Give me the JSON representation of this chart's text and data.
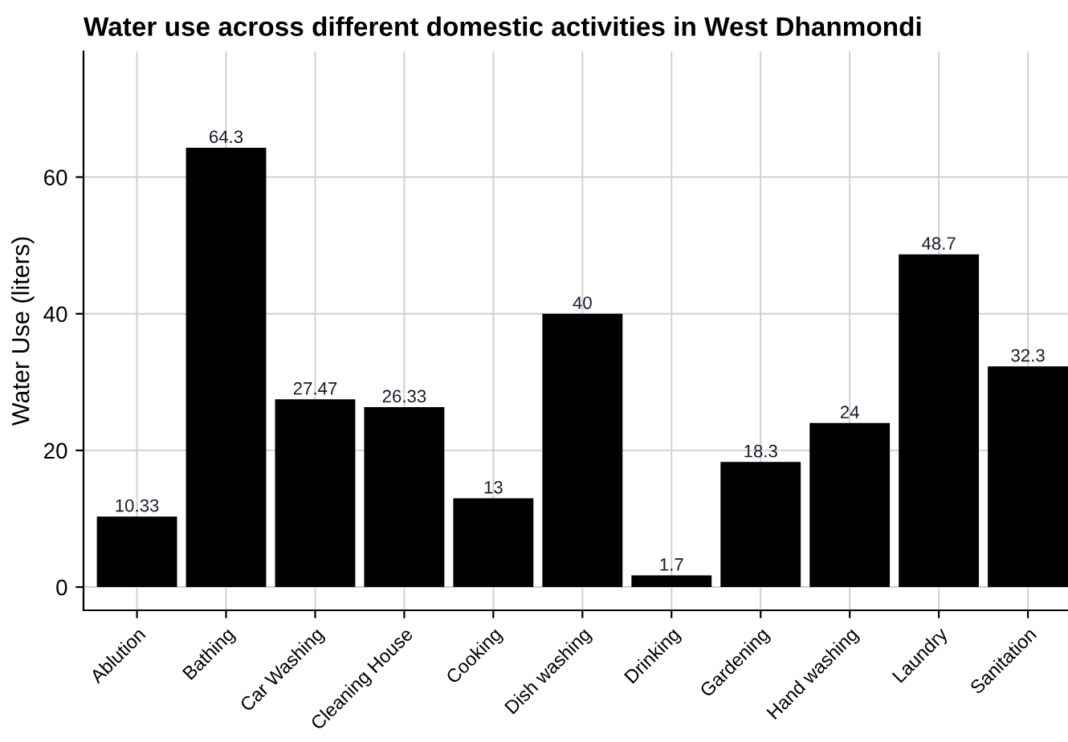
{
  "chart_data": {
    "type": "bar",
    "title": "Water use across different domestic activities in West Dhanmondi",
    "ylabel": "Water Use (liters)",
    "categories": [
      "Ablution",
      "Bathing",
      "Car Washing",
      "Cleaning House",
      "Cooking",
      "Dish washing",
      "Drinking",
      "Gardening",
      "Hand washing",
      "Laundry",
      "Sanitation"
    ],
    "values": [
      10.33,
      64.3,
      27.47,
      26.33,
      13,
      40,
      1.7,
      18.3,
      24,
      48.7,
      32.3
    ],
    "color": "#000000",
    "ylim": [
      -3.4,
      78.4
    ],
    "yticks": [
      0,
      20,
      40,
      60
    ],
    "grid": true,
    "data_labels": true
  }
}
